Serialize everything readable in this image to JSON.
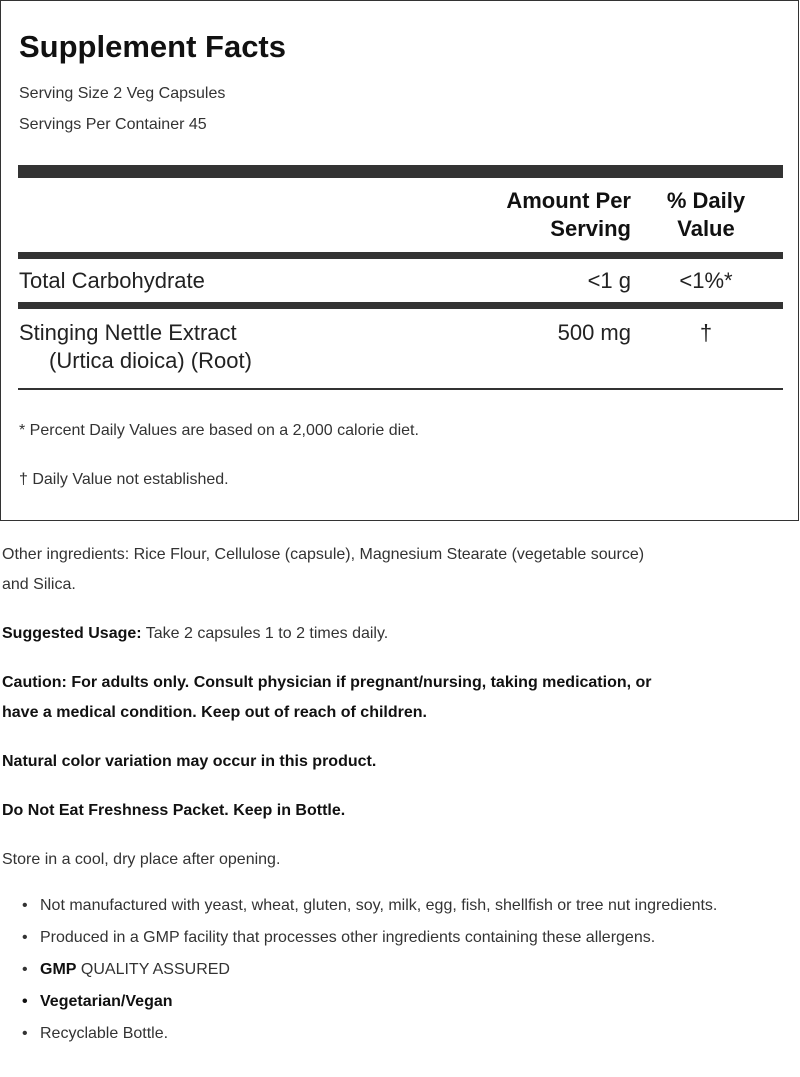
{
  "facts": {
    "title": "Supplement Facts",
    "serving_size": "Serving Size 2 Veg Capsules",
    "servings_per_container": "Servings Per Container 45",
    "header_amount_1": "Amount Per",
    "header_amount_2": "Serving",
    "header_dv_1": "% Daily",
    "header_dv_2": "Value",
    "rows": [
      {
        "name": "Total Carbohydrate",
        "sub": "",
        "amount": "<1 g",
        "dv": "<1%*"
      },
      {
        "name": "Stinging Nettle Extract",
        "sub": "(Urtica dioica) (Root)",
        "amount": "500 mg",
        "dv": "†"
      }
    ],
    "footnote_1": "* Percent Daily Values are based on a 2,000 calorie diet.",
    "footnote_2": "† Daily Value not established."
  },
  "info": {
    "other_ingredients_1": "Other ingredients: Rice Flour, Cellulose (capsule), Magnesium Stearate (vegetable source)",
    "other_ingredients_2": "and Silica.",
    "usage_label": "Suggested Usage:",
    "usage_text": " Take 2 capsules 1 to 2 times daily.",
    "caution_1": "Caution: For adults only. Consult physician if pregnant/nursing, taking medication, or",
    "caution_2": "have a medical condition. Keep out of reach of children.",
    "color_note": "Natural color variation may occur in this product.",
    "freshness": "Do Not Eat Freshness Packet. Keep in Bottle.",
    "storage": "Store in a cool, dry place after opening.",
    "bullets": [
      "Not manufactured with yeast, wheat, gluten, soy, milk, egg, fish, shellfish or tree nut ingredients.",
      "Produced in a GMP facility that processes other ingredients containing these allergens."
    ],
    "gmp_bold": "GMP",
    "gmp_rest": " QUALITY ASSURED",
    "vegan": "Vegetarian/Vegan",
    "recyclable": "Recyclable Bottle."
  }
}
